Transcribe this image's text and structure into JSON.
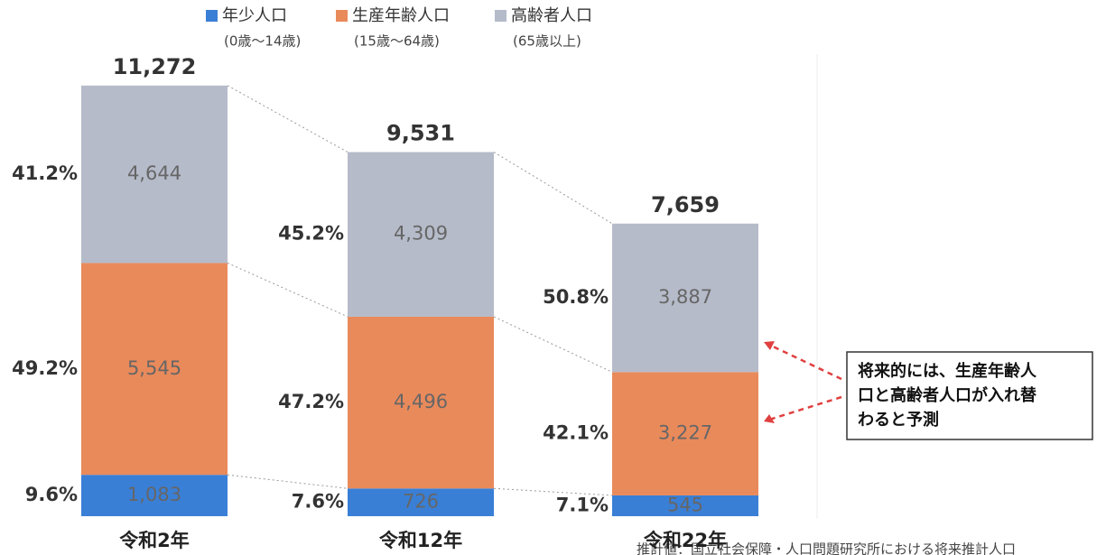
{
  "chart_data": {
    "type": "stacked_bar",
    "categories": [
      "令和2年",
      "令和12年",
      "令和22年"
    ],
    "series": [
      {
        "name": "年少人口",
        "note": "(0歳～14歳)",
        "color": "#3a7fd6",
        "values": [
          1083,
          726,
          545
        ],
        "value_labels": [
          "1,083",
          "726",
          "545"
        ],
        "share_labels": [
          "9.6%",
          "7.6%",
          "7.1%"
        ]
      },
      {
        "name": "生産年齢人口",
        "note": "(15歳～64歳)",
        "color": "#e98a5b",
        "values": [
          5545,
          4496,
          3227
        ],
        "value_labels": [
          "5,545",
          "4,496",
          "3,227"
        ],
        "share_labels": [
          "49.2%",
          "47.2%",
          "42.1%"
        ]
      },
      {
        "name": "高齢者人口",
        "note": "(65歳以上)",
        "color": "#b5bbc9",
        "values": [
          4644,
          4309,
          3887
        ],
        "value_labels": [
          "4,644",
          "4,309",
          "3,887"
        ],
        "share_labels": [
          "41.2%",
          "45.2%",
          "50.8%"
        ]
      }
    ],
    "totals": [
      11272,
      9531,
      7659
    ],
    "total_labels": [
      "11,272",
      "9,531",
      "7,659"
    ],
    "ylim": [
      0,
      12000
    ],
    "annotation": [
      "将来的には、生産年齢人",
      "口と高齢者人口が入れ替",
      "わると予測"
    ],
    "source": "推計値：国立社会保障・人口問題研究所における将来推計人口"
  }
}
